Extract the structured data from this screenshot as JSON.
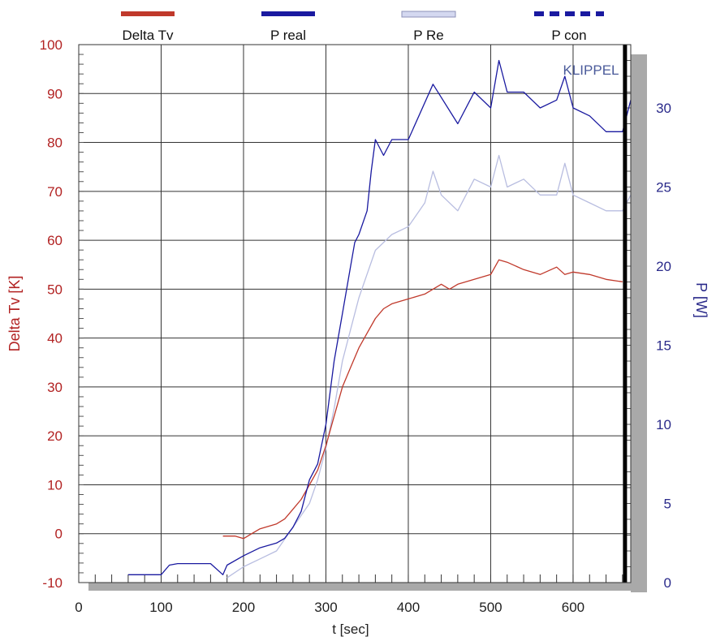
{
  "chart_data": {
    "type": "line",
    "xlabel": "t [sec]",
    "ylabel_left": "Delta Tv [K]",
    "ylabel_right": "P [W]",
    "watermark": "KLIPPEL",
    "xlim": [
      0,
      670
    ],
    "ylim_left": [
      -10,
      100
    ],
    "ylim_right": [
      0,
      34
    ],
    "x_ticks": [
      0,
      100,
      200,
      300,
      400,
      500,
      600
    ],
    "y_left_ticks": [
      -10,
      0,
      10,
      20,
      30,
      40,
      50,
      60,
      70,
      80,
      90,
      100
    ],
    "y_right_ticks": [
      0,
      5,
      10,
      15,
      20,
      25,
      30
    ],
    "grid": true,
    "end_marker_x": 663,
    "legend_position": "top",
    "colors": {
      "delta_tv": "#c0392b",
      "p_real": "#1a1aa0",
      "p_re": "#b8bde0",
      "p_con": "#1a1aa0",
      "left_axis": "#b22222",
      "right_axis": "#2a2a8a"
    },
    "series": [
      {
        "name": "Delta Tv",
        "axis": "left",
        "color": "#c0392b",
        "style": "solid",
        "x": [
          175,
          190,
          200,
          210,
          220,
          230,
          240,
          250,
          260,
          270,
          280,
          290,
          300,
          310,
          320,
          330,
          340,
          350,
          360,
          370,
          380,
          390,
          400,
          420,
          440,
          450,
          460,
          480,
          500,
          510,
          520,
          540,
          560,
          580,
          590,
          600,
          620,
          640,
          660
        ],
        "y": [
          -0.5,
          -0.5,
          -1,
          0,
          1,
          1.5,
          2,
          3,
          5,
          7,
          10,
          13,
          18,
          24,
          30,
          34,
          38,
          41,
          44,
          46,
          47,
          47.5,
          48,
          49,
          51,
          50,
          51,
          52,
          53,
          56,
          55.5,
          54,
          53,
          54.5,
          53,
          53.5,
          53,
          52,
          51.5
        ]
      },
      {
        "name": "P real",
        "axis": "right",
        "color": "#1a1aa0",
        "style": "solid",
        "x": [
          60,
          80,
          100,
          110,
          120,
          140,
          160,
          175,
          180,
          200,
          220,
          240,
          250,
          260,
          270,
          280,
          290,
          300,
          310,
          320,
          330,
          335,
          340,
          350,
          355,
          360,
          370,
          380,
          400,
          430,
          460,
          480,
          500,
          510,
          520,
          540,
          560,
          580,
          590,
          600,
          620,
          640,
          660,
          670
        ],
        "y": [
          0.5,
          0.5,
          0.5,
          1.1,
          1.2,
          1.2,
          1.2,
          0.5,
          1.1,
          1.7,
          2.2,
          2.5,
          2.8,
          3.5,
          4.5,
          6.5,
          7.5,
          10,
          14,
          17,
          20,
          21.5,
          22,
          23.5,
          26,
          28,
          27,
          28,
          28,
          31.5,
          29,
          31,
          30,
          33,
          31,
          31,
          30,
          30.5,
          32,
          30,
          29.5,
          28.5,
          28.5,
          30.5
        ]
      },
      {
        "name": "P Re",
        "axis": "right",
        "color": "#b8bde0",
        "style": "solid",
        "x": [
          180,
          200,
          220,
          240,
          260,
          280,
          290,
          300,
          310,
          320,
          330,
          340,
          350,
          360,
          370,
          380,
          400,
          420,
          430,
          440,
          460,
          480,
          500,
          510,
          520,
          540,
          560,
          580,
          590,
          600,
          620,
          640,
          660,
          670
        ],
        "y": [
          0.3,
          1,
          1.5,
          2,
          3.5,
          5,
          6.5,
          8.5,
          11,
          14,
          16,
          18,
          19.5,
          21,
          21.5,
          22,
          22.5,
          24,
          26,
          24.5,
          23.5,
          25.5,
          25,
          27,
          25,
          25.5,
          24.5,
          24.5,
          26.5,
          24.5,
          24,
          23.5,
          23.5,
          24.5
        ]
      },
      {
        "name": "P con",
        "axis": "right",
        "color": "#1a1aa0",
        "style": "dashed",
        "x": [],
        "y": []
      }
    ]
  }
}
